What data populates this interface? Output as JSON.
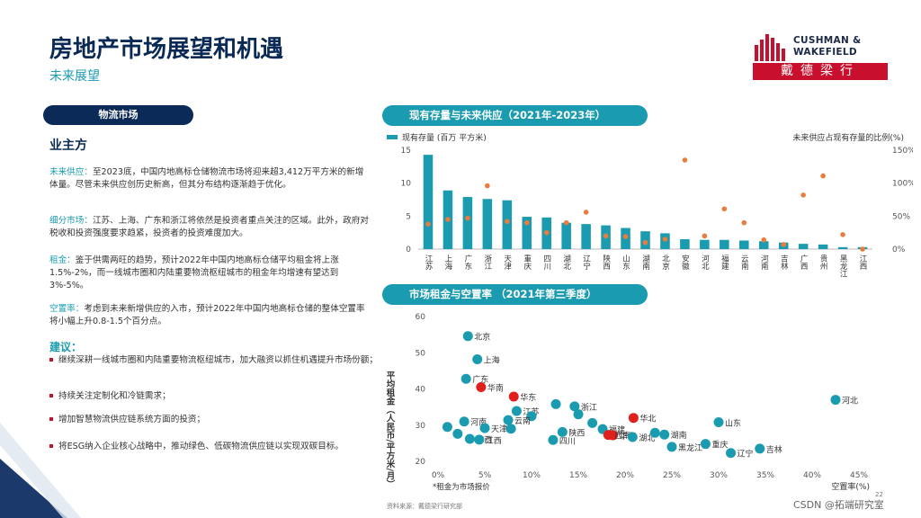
{
  "header": {
    "title": "房地产市场展望和机遇",
    "subtitle": "未来展望",
    "logo_line1": "CUSHMAN &",
    "logo_line2": "WAKEFIELD",
    "logo_cn": "戴德梁行"
  },
  "left": {
    "pill": "物流市场",
    "section_heading": "业主方",
    "paragraphs": [
      {
        "label": "未来供应：",
        "text": "至2023底，中国内地高标仓储物流市场将迎来超3,412万平方米的新增体量。尽管未来供应创历史新高，但其分布结构逐渐趋于优化。"
      },
      {
        "label": "细分市场：",
        "text": "江苏、上海、广东和浙江将依然是投资者重点关注的区域。此外，政府对税收和投资强度要求趋紧，投资者的投资难度加大。"
      },
      {
        "label": "租金：",
        "text": "鉴于供需两旺的趋势，预计2022年中国内地高标仓储平均租金将上涨1.5%-2%，而一线城市圈和内陆重要物流枢纽城市的租金年均增速有望达到3%-5%。"
      },
      {
        "label": "空置率：",
        "text": "考虑到未来新增供应的入市，预计2022年中国内地高标仓储的整体空置率将小幅上升0.8-1.5个百分点。"
      }
    ],
    "suggest_heading": "建议：",
    "bullets": [
      "继续深耕一线城市圈和内陆重要物流枢纽城市，加大融资以抓住机遇提升市场份额；",
      "持续关注定制化和冷链需求；",
      "增加智慧物流供应链系统方面的投资；",
      "将ESG纳入企业核心战略中，推动绿色、低碳物流供应链以实现双碳目标。"
    ]
  },
  "chart_data": [
    {
      "type": "bar",
      "title": "现有存量与未来供应（2021年-2023年）",
      "legend_bar": "现有存量 (百万 平方米)",
      "legend_dot": "未来供应占现有存量的比例(%)",
      "categories": [
        "江苏",
        "上海",
        "广东",
        "浙江",
        "天津",
        "重庆",
        "四川",
        "湖北",
        "辽宁",
        "陕西",
        "山东",
        "湖南",
        "北京",
        "安徽",
        "河北",
        "福建",
        "云南",
        "河南",
        "吉林",
        "广西",
        "贵州",
        "黑龙江",
        "江西"
      ],
      "series": [
        {
          "name": "现有存量 (百万 平方米)",
          "axis": "left",
          "values": [
            14.3,
            8.9,
            7.9,
            7.6,
            7.4,
            4.9,
            4.8,
            4.0,
            3.8,
            3.6,
            3.2,
            2.7,
            2.4,
            1.5,
            1.4,
            1.4,
            1.3,
            1.2,
            1.0,
            0.8,
            0.7,
            0.3,
            0.3
          ]
        },
        {
          "name": "未来供应占现有存量的比例(%)",
          "axis": "right",
          "values": [
            38,
            45,
            47,
            96,
            42,
            40,
            25,
            40,
            56,
            20,
            19,
            10,
            15,
            135,
            20,
            61,
            40,
            14,
            7,
            82,
            111,
            22,
            0
          ]
        }
      ],
      "yleft": {
        "ylim": [
          0,
          15
        ],
        "ticks": [
          0,
          5,
          10,
          15
        ]
      },
      "yright": {
        "ylim": [
          0,
          150
        ],
        "ticks": [
          "0%",
          "50%",
          "100%",
          "150%"
        ]
      }
    },
    {
      "type": "scatter",
      "title": "市场租金与空置率 （2021年第三季度）",
      "xlabel": "空置率(%)",
      "ylabel": "平均租金（人民币/平方米/月）",
      "note": "*租金为市场报价",
      "xlim": [
        0,
        45
      ],
      "ylim": [
        20,
        60
      ],
      "xticks": [
        "0%",
        "5%",
        "10%",
        "15%",
        "20%",
        "25%",
        "30%",
        "35%",
        "40%",
        "45%"
      ],
      "yticks": [
        20,
        30,
        40,
        50,
        60
      ],
      "points": [
        {
          "label": "北京",
          "x": 3.2,
          "y": 54.6,
          "region": false
        },
        {
          "label": "上海",
          "x": 4.2,
          "y": 48.2,
          "region": false
        },
        {
          "label": "广东",
          "x": 3.0,
          "y": 42.8,
          "region": false
        },
        {
          "label": "华南",
          "x": 4.6,
          "y": 40.5,
          "region": true
        },
        {
          "label": "华东",
          "x": 8.1,
          "y": 37.9,
          "region": true
        },
        {
          "label": "",
          "x": 12.6,
          "y": 35.8,
          "region": false
        },
        {
          "label": "浙江",
          "x": 14.6,
          "y": 35.2,
          "region": false
        },
        {
          "label": "江苏",
          "x": 8.4,
          "y": 33.9,
          "region": false
        },
        {
          "label": "",
          "x": 15.0,
          "y": 33.0,
          "region": false
        },
        {
          "label": "",
          "x": 10.0,
          "y": 32.5,
          "region": false
        },
        {
          "label": "云南",
          "x": 7.5,
          "y": 31.4,
          "region": false
        },
        {
          "label": "河南",
          "x": 2.8,
          "y": 31.0,
          "region": false
        },
        {
          "label": "",
          "x": 1.0,
          "y": 29.5,
          "region": false
        },
        {
          "label": "天津",
          "x": 5.0,
          "y": 29.2,
          "region": false
        },
        {
          "label": "",
          "x": 7.8,
          "y": 29.0,
          "region": false
        },
        {
          "label": "",
          "x": 16.5,
          "y": 30.6,
          "region": false
        },
        {
          "label": "陕西",
          "x": 13.3,
          "y": 28.1,
          "region": false
        },
        {
          "label": "福建",
          "x": 17.6,
          "y": 28.9,
          "region": false
        },
        {
          "label": "",
          "x": 2.1,
          "y": 27.6,
          "region": false
        },
        {
          "label": "广西",
          "x": 3.4,
          "y": 26.2,
          "region": false
        },
        {
          "label": "江西",
          "x": 4.4,
          "y": 26.0,
          "region": false
        },
        {
          "label": "四川",
          "x": 12.3,
          "y": 25.9,
          "region": false
        },
        {
          "label": "华中",
          "x": 18.7,
          "y": 27.2,
          "region": true
        },
        {
          "label": "西南",
          "x": 18.2,
          "y": 27.3,
          "region": true
        },
        {
          "label": "华北",
          "x": 20.9,
          "y": 32.0,
          "region": true
        },
        {
          "label": "湖北",
          "x": 20.8,
          "y": 26.7,
          "region": false
        },
        {
          "label": "",
          "x": 23.2,
          "y": 27.9,
          "region": false
        },
        {
          "label": "湖南",
          "x": 24.2,
          "y": 27.4,
          "region": false
        },
        {
          "label": "黑龙江",
          "x": 25.0,
          "y": 24.0,
          "region": false
        },
        {
          "label": "重庆",
          "x": 28.6,
          "y": 24.8,
          "region": false
        },
        {
          "label": "山东",
          "x": 30.0,
          "y": 30.8,
          "region": false
        },
        {
          "label": "辽宁",
          "x": 31.3,
          "y": 22.3,
          "region": false
        },
        {
          "label": "吉林",
          "x": 34.4,
          "y": 23.5,
          "region": false
        },
        {
          "label": "河北",
          "x": 42.5,
          "y": 37.0,
          "region": false
        }
      ]
    }
  ],
  "footer": {
    "source": "资料来源：戴德梁行研究部",
    "watermark": "CSDN @拓端研究室",
    "page": "22"
  },
  "colors": {
    "navy": "#0b2a57",
    "teal": "#1a9bb0",
    "orange": "#e87d3e",
    "red": "#e0201c",
    "brand_red": "#c8102e"
  }
}
